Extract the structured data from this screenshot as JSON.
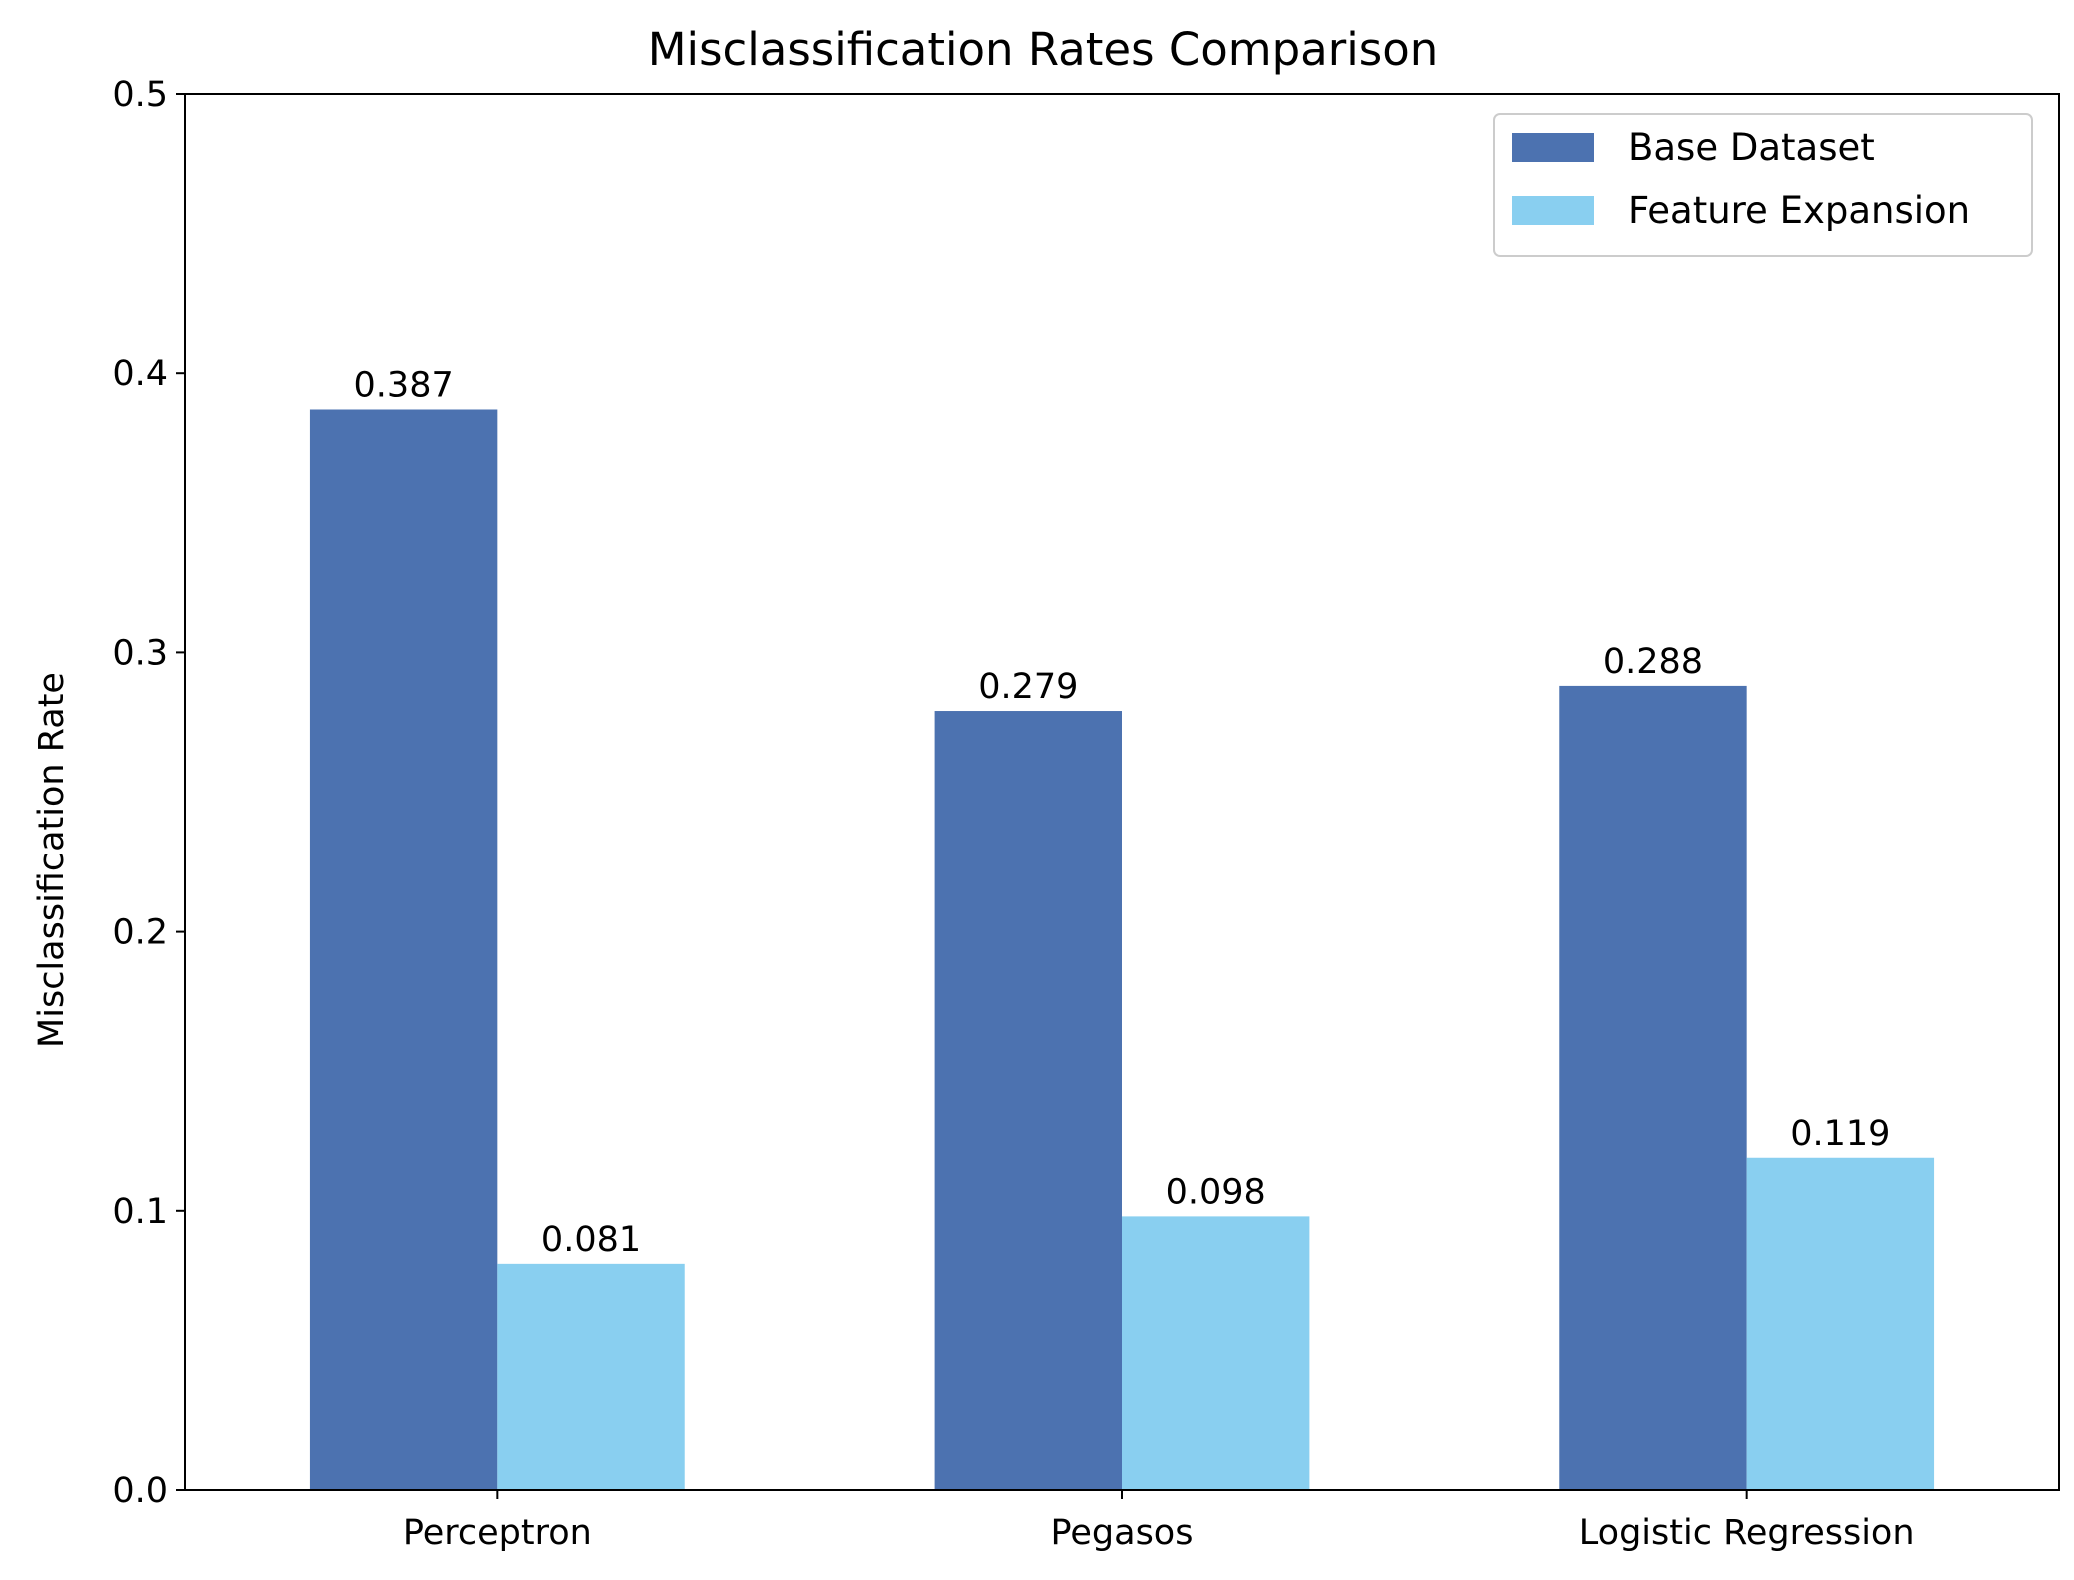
{
  "chart_data": {
    "type": "bar",
    "title": "Misclassification Rates Comparison",
    "xlabel": "",
    "ylabel": "Misclassification Rate",
    "categories": [
      "Perceptron",
      "Pegasos",
      "Logistic Regression"
    ],
    "series": [
      {
        "name": "Base Dataset",
        "values": [
          0.387,
          0.279,
          0.288
        ],
        "color": "#4c72b0"
      },
      {
        "name": "Feature Expansion",
        "values": [
          0.081,
          0.098,
          0.119
        ],
        "color": "#89cff0"
      }
    ],
    "data_labels": [
      [
        "0.387",
        "0.279",
        "0.288"
      ],
      [
        "0.081",
        "0.098",
        "0.119"
      ]
    ],
    "ylim": [
      0,
      0.5
    ],
    "yticks": [
      0.0,
      0.1,
      0.2,
      0.3,
      0.4,
      0.5
    ],
    "ytick_labels": [
      "0.0",
      "0.1",
      "0.2",
      "0.3",
      "0.4",
      "0.5"
    ],
    "grid": false,
    "legend_position": "top-right"
  }
}
